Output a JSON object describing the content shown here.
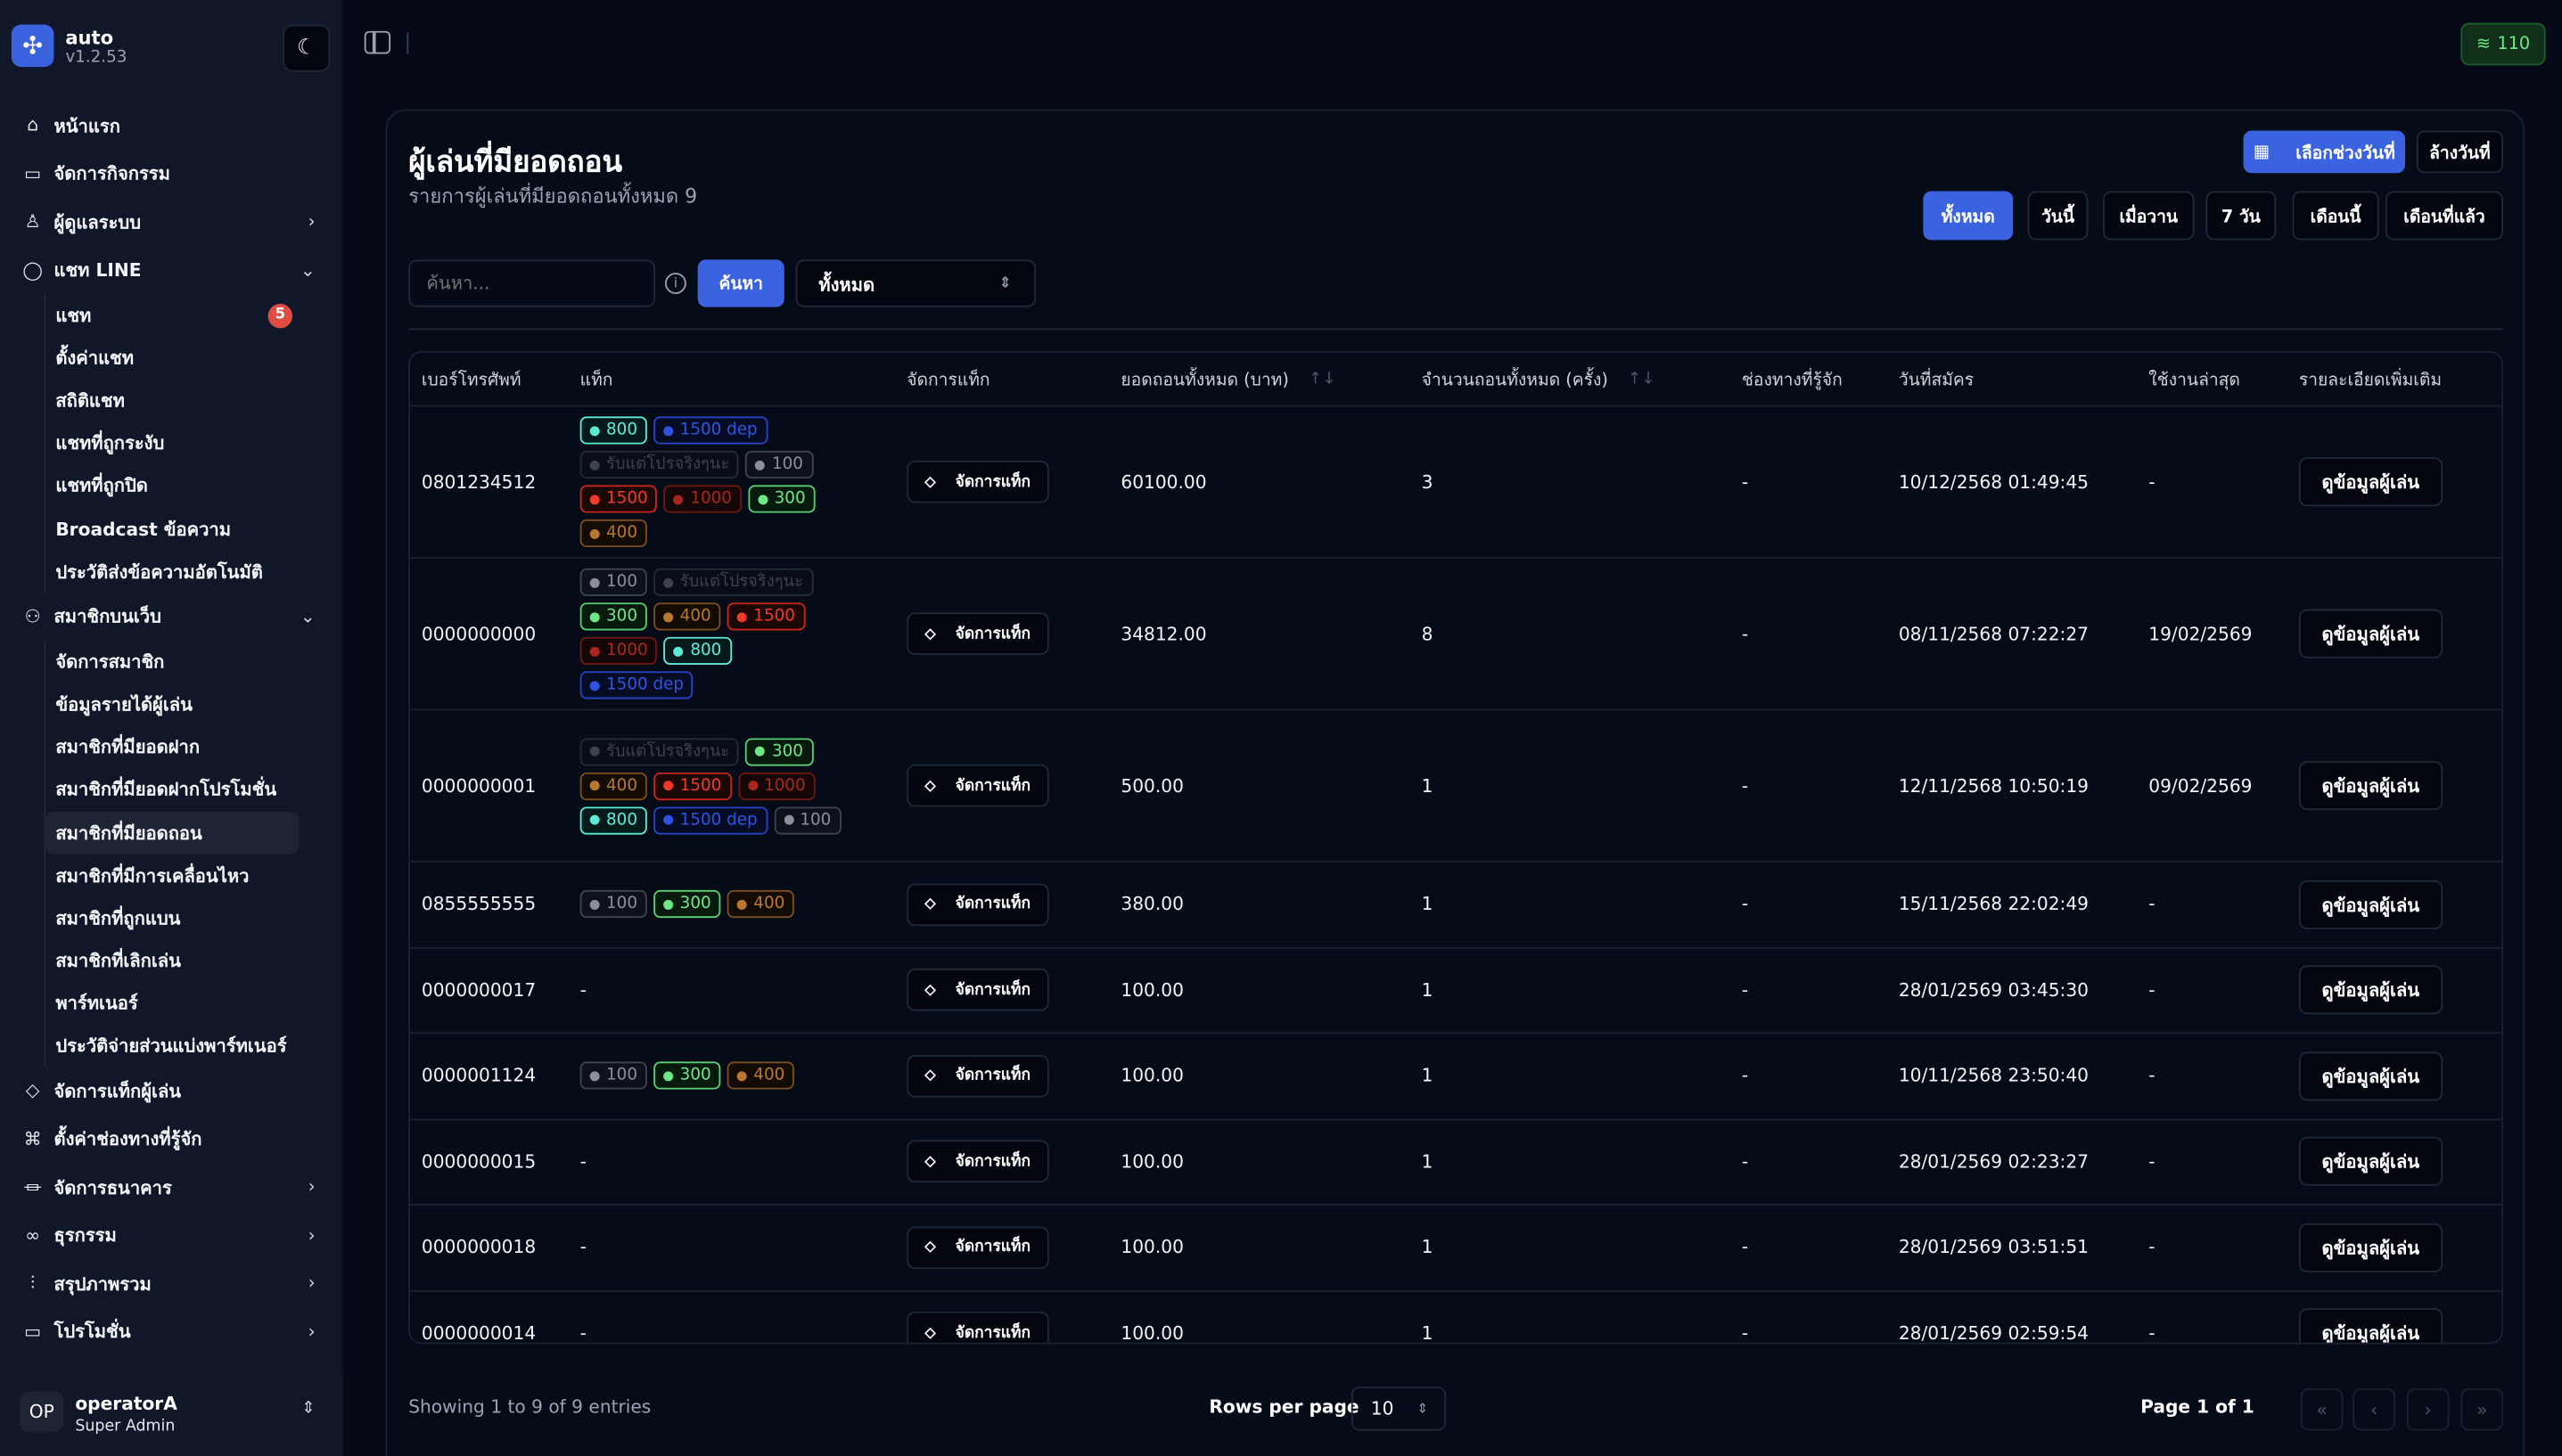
{
  "app": {
    "name": "auto",
    "version": "v1.2.53"
  },
  "sidebar": {
    "items": [
      {
        "label": "หน้าแรก",
        "icon": "home-icon",
        "glyph": "⌂"
      },
      {
        "label": "จัดการกิจกรรม",
        "icon": "ticket-icon",
        "glyph": "▭"
      },
      {
        "label": "ผู้ดูแลระบบ",
        "icon": "user-icon",
        "glyph": "♙",
        "chevron": "›"
      },
      {
        "label": "แชท LINE",
        "icon": "chat-icon",
        "glyph": "◯",
        "chevron": "⌄",
        "children": [
          {
            "label": "แชท",
            "badge": "5"
          },
          {
            "label": "ตั้งค่าแชท"
          },
          {
            "label": "สถิติแชท"
          },
          {
            "label": "แชทที่ถูกระงับ"
          },
          {
            "label": "แชทที่ถูกปิด"
          },
          {
            "label": "Broadcast ข้อความ"
          },
          {
            "label": "ประวัติส่งข้อความอัตโนมัติ"
          }
        ]
      },
      {
        "label": "สมาชิกบนเว็บ",
        "icon": "users-icon",
        "glyph": "⚇",
        "chevron": "⌄",
        "children": [
          {
            "label": "จัดการสมาชิก"
          },
          {
            "label": "ข้อมูลรายได้ผู้เล่น"
          },
          {
            "label": "สมาชิกที่มียอดฝาก"
          },
          {
            "label": "สมาชิกที่มียอดฝากโปรโมชั่น"
          },
          {
            "label": "สมาชิกที่มียอดถอน",
            "active": true
          },
          {
            "label": "สมาชิกที่มีการเคลื่อนไหว"
          },
          {
            "label": "สมาชิกที่ถูกแบน"
          },
          {
            "label": "สมาชิกที่เลิกเล่น"
          },
          {
            "label": "พาร์ทเนอร์"
          },
          {
            "label": "ประวัติจ่ายส่วนแบ่งพาร์ทเนอร์"
          }
        ]
      },
      {
        "label": "จัดการแท็กผู้เล่น",
        "icon": "tag-icon",
        "glyph": "◇"
      },
      {
        "label": "ตั้งค่าช่องทางที่รู้จัก",
        "icon": "command-icon",
        "glyph": "⌘"
      },
      {
        "label": "จัดการธนาคาร",
        "icon": "bank-icon",
        "glyph": "⏛",
        "chevron": "›"
      },
      {
        "label": "ธุรกรรม",
        "icon": "handshake-icon",
        "glyph": "∞",
        "chevron": "›"
      },
      {
        "label": "สรุปภาพรวม",
        "icon": "bar-chart-icon",
        "glyph": "⫶",
        "chevron": "›"
      },
      {
        "label": "โปรโมชั่น",
        "icon": "ticket-icon",
        "glyph": "▭",
        "chevron": "›"
      }
    ]
  },
  "user": {
    "initials": "OP",
    "name": "operatorA",
    "role": "Super Admin"
  },
  "status": {
    "signal": "110",
    "color": "#6ee787"
  },
  "page": {
    "title": "ผู้เล่นที่มียอดถอน",
    "subtitle": "รายการผู้เล่นที่มียอดถอนทั้งหมด 9",
    "pick_range": "เลือกช่วงวันที่",
    "clear_date": "ล้างวันที่",
    "quick_filters": [
      "ทั้งหมด",
      "วันนี้",
      "เมื่อวาน",
      "7 วัน",
      "เดือนนี้",
      "เดือนที่แล้ว"
    ],
    "search_placeholder": "ค้นหา...",
    "search_button": "ค้นหา",
    "filter_value": "ทั้งหมด"
  },
  "tag_colors": {
    "800": {
      "fg": "#5eead4",
      "border": "#5eead4",
      "bg": "#061a1c"
    },
    "1500 dep": {
      "fg": "#2f54e0",
      "border": "#2744c6",
      "bg": "#060c24"
    },
    "รับแต่โปรจริงๆนะ": {
      "fg": "#3d4250",
      "border": "#262b37",
      "bg": "#090d18"
    },
    "100": {
      "fg": "#8b8f99",
      "border": "#3f444f",
      "bg": "#0d111b"
    },
    "1500": {
      "fg": "#ef3b2c",
      "border": "#c7261b",
      "bg": "#1d0808"
    },
    "1000": {
      "fg": "#a8261c",
      "border": "#6e1812",
      "bg": "#150707"
    },
    "300": {
      "fg": "#6ee787",
      "border": "#5acf72",
      "bg": "#08190d"
    },
    "400": {
      "fg": "#b8782f",
      "border": "#7b4f1f",
      "bg": "#120c05"
    }
  },
  "table": {
    "headers": [
      "เบอร์โทรศัพท์",
      "แท็ก",
      "จัดการแท็ก",
      "ยอดถอนทั้งหมด (บาท)",
      "จำนวนถอนทั้งหมด (ครั้ง)",
      "ช่องทางที่รู้จัก",
      "วันที่สมัคร",
      "ใช้งานล่าสุด",
      "รายละเอียดเพิ่มเติม"
    ],
    "manage_label": "จัดการแท็ก",
    "view_label": "ดูข้อมูลผู้เล่น",
    "empty": "-",
    "rows": [
      {
        "phone": "0801234512",
        "tags": [
          "800",
          "1500 dep",
          "รับแต่โปรจริงๆนะ",
          "100",
          "1500",
          "1000",
          "300",
          "400"
        ],
        "amount": "60100.00",
        "count": "3",
        "channel": "-",
        "registered": "10/12/2568 01:49:45",
        "last": "-"
      },
      {
        "phone": "0000000000",
        "tags": [
          "100",
          "รับแต่โปรจริงๆนะ",
          "300",
          "400",
          "1500",
          "1000",
          "800",
          "1500 dep"
        ],
        "amount": "34812.00",
        "count": "8",
        "channel": "-",
        "registered": "08/11/2568 07:22:27",
        "last": "19/02/2569"
      },
      {
        "phone": "0000000001",
        "tags": [
          "รับแต่โปรจริงๆนะ",
          "300",
          "400",
          "1500",
          "1000",
          "800",
          "1500 dep",
          "100"
        ],
        "amount": "500.00",
        "count": "1",
        "channel": "-",
        "registered": "12/11/2568 10:50:19",
        "last": "09/02/2569"
      },
      {
        "phone": "0855555555",
        "tags": [
          "100",
          "300",
          "400"
        ],
        "amount": "380.00",
        "count": "1",
        "channel": "-",
        "registered": "15/11/2568 22:02:49",
        "last": "-"
      },
      {
        "phone": "0000000017",
        "tags": [],
        "amount": "100.00",
        "count": "1",
        "channel": "-",
        "registered": "28/01/2569 03:45:30",
        "last": "-"
      },
      {
        "phone": "0000001124",
        "tags": [
          "100",
          "300",
          "400"
        ],
        "amount": "100.00",
        "count": "1",
        "channel": "-",
        "registered": "10/11/2568 23:50:40",
        "last": "-"
      },
      {
        "phone": "0000000015",
        "tags": [],
        "amount": "100.00",
        "count": "1",
        "channel": "-",
        "registered": "28/01/2569 02:23:27",
        "last": "-"
      },
      {
        "phone": "0000000018",
        "tags": [],
        "amount": "100.00",
        "count": "1",
        "channel": "-",
        "registered": "28/01/2569 03:51:51",
        "last": "-"
      },
      {
        "phone": "0000000014",
        "tags": [],
        "amount": "100.00",
        "count": "1",
        "channel": "-",
        "registered": "28/01/2569 02:59:54",
        "last": "-"
      }
    ]
  },
  "footer": {
    "showing": "Showing 1 to 9 of 9 entries",
    "rows_per_page_label": "Rows per page",
    "rows_per_page": "10",
    "page": "Page 1 of 1"
  }
}
